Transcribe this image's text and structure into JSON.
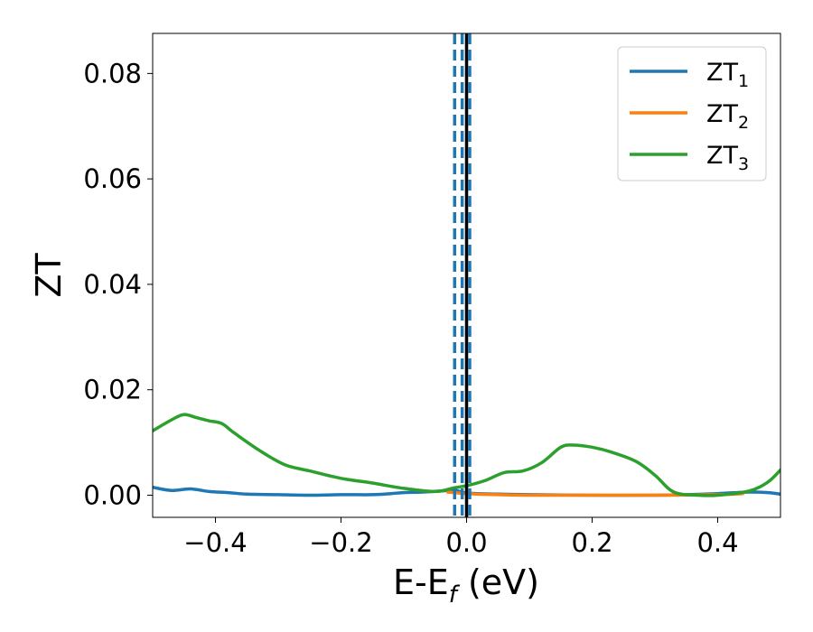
{
  "chart_data": {
    "type": "line",
    "xlabel": "E-E",
    "xlabel_subscript": "f",
    "xlabel_unit": " (eV)",
    "ylabel": "ZT",
    "xlim": [
      -0.5,
      0.5
    ],
    "ylim": [
      -0.0042,
      0.0876
    ],
    "xticks": [
      -0.4,
      -0.2,
      0.0,
      0.2,
      0.4
    ],
    "xtick_labels": [
      "−0.4",
      "−0.2",
      "0.0",
      "0.2",
      "0.4"
    ],
    "yticks": [
      0.0,
      0.02,
      0.04,
      0.06,
      0.08
    ],
    "ytick_labels": [
      "0.00",
      "0.02",
      "0.04",
      "0.06",
      "0.08"
    ],
    "legend_position": "top-right",
    "grid": false,
    "vlines": [
      {
        "x": 0.0,
        "color": "#000000",
        "style": "solid"
      },
      {
        "x": -0.019,
        "color": "#1f77b4",
        "style": "dashed"
      },
      {
        "x": -0.007,
        "color": "#1f77b4",
        "style": "dashed"
      },
      {
        "x": 0.005,
        "color": "#1f77b4",
        "style": "dashed"
      }
    ],
    "series": [
      {
        "name": "ZT",
        "subscript": "1",
        "color": "#1f77b4",
        "x": [
          -0.5,
          -0.47,
          -0.44,
          -0.41,
          -0.38,
          -0.35,
          -0.3,
          -0.25,
          -0.2,
          -0.15,
          -0.12,
          -0.1,
          -0.07,
          -0.04,
          -0.02,
          0.0,
          0.05,
          0.1,
          0.2,
          0.3,
          0.35,
          0.4,
          0.45,
          0.48,
          0.5
        ],
        "y": [
          0.0015,
          0.0009,
          0.0012,
          0.0007,
          0.0005,
          0.0002,
          0.0001,
          0.0,
          0.0001,
          0.0001,
          0.0003,
          0.0005,
          0.0006,
          0.0008,
          0.001,
          0.0004,
          0.0002,
          0.0001,
          0.0,
          0.0,
          0.0001,
          0.0003,
          0.0006,
          0.0005,
          0.0002
        ]
      },
      {
        "name": "ZT",
        "subscript": "2",
        "color": "#ff7f0e",
        "x": [
          -0.03,
          0.0,
          0.05,
          0.1,
          0.2,
          0.3,
          0.4,
          0.44
        ],
        "y": [
          0.0006,
          0.0003,
          0.0001,
          0.0,
          0.0,
          0.0,
          0.0001,
          0.0003
        ]
      },
      {
        "name": "ZT",
        "subscript": "3",
        "color": "#2ca02c",
        "x": [
          -0.5,
          -0.47,
          -0.45,
          -0.43,
          -0.41,
          -0.39,
          -0.37,
          -0.33,
          -0.29,
          -0.25,
          -0.2,
          -0.15,
          -0.1,
          -0.05,
          -0.02,
          0.0,
          0.03,
          0.06,
          0.09,
          0.12,
          0.15,
          0.17,
          0.2,
          0.23,
          0.27,
          0.3,
          0.33,
          0.37,
          0.4,
          0.45,
          0.48,
          0.5
        ],
        "y": [
          0.0122,
          0.0143,
          0.0153,
          0.0147,
          0.0141,
          0.0136,
          0.0118,
          0.0085,
          0.0058,
          0.0046,
          0.0032,
          0.0023,
          0.0013,
          0.0007,
          0.0014,
          0.0018,
          0.0028,
          0.0043,
          0.0046,
          0.0062,
          0.0091,
          0.0095,
          0.0091,
          0.0082,
          0.0064,
          0.0038,
          0.0006,
          0.0,
          0.0,
          0.0008,
          0.0025,
          0.0048
        ]
      }
    ]
  }
}
